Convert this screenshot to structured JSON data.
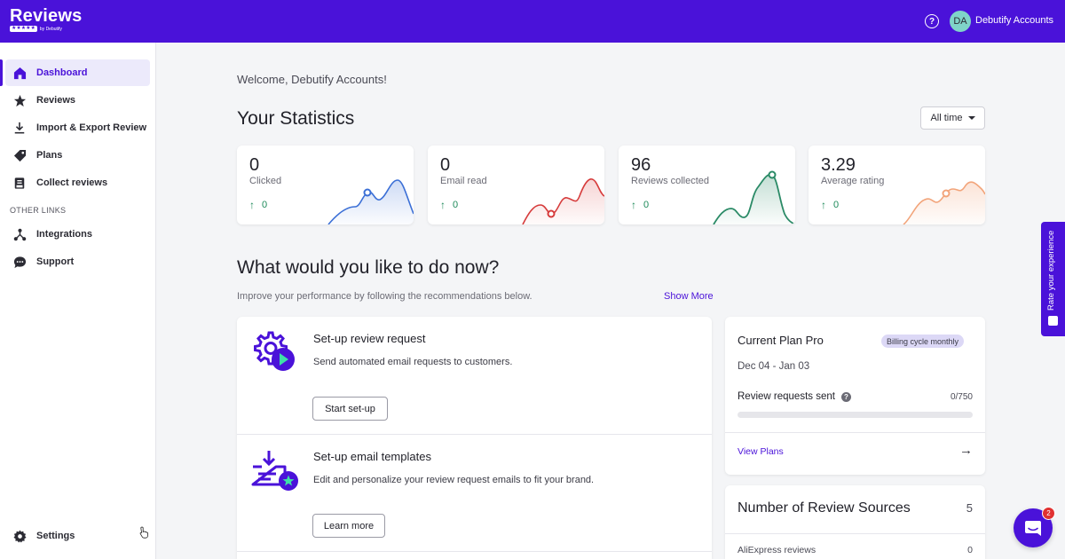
{
  "header": {
    "logo_text": "Reviews",
    "logo_sub": "by Debutify",
    "logo_stars": "★★★★★",
    "account_initials": "DA",
    "account_name": "Debutify Accounts",
    "help_icon": "help-circle-icon"
  },
  "sidebar": {
    "items": [
      {
        "label": "Dashboard",
        "icon": "home-icon",
        "active": true
      },
      {
        "label": "Reviews",
        "icon": "star-icon"
      },
      {
        "label": "Import & Export Review",
        "icon": "download-icon"
      },
      {
        "label": "Plans",
        "icon": "tag-icon"
      },
      {
        "label": "Collect reviews",
        "icon": "collect-icon"
      }
    ],
    "other_links_label": "OTHER LINKS",
    "other_items": [
      {
        "label": "Integrations",
        "icon": "integrations-icon"
      },
      {
        "label": "Support",
        "icon": "chat-bubble-icon"
      }
    ],
    "settings_label": "Settings"
  },
  "main": {
    "welcome": "Welcome, Debutify Accounts!",
    "stats_title": "Your Statistics",
    "period_select": "All time",
    "stats": [
      {
        "value": "0",
        "label": "Clicked",
        "delta": "0",
        "color": "#3b6fd6"
      },
      {
        "value": "0",
        "label": "Email read",
        "delta": "0",
        "color": "#d63b3b"
      },
      {
        "value": "96",
        "label": "Reviews collected",
        "delta": "0",
        "color": "#2a8a66"
      },
      {
        "value": "3.29",
        "label": "Average rating",
        "delta": "0",
        "color": "#f2a47a"
      }
    ],
    "todo_title": "What would you like to do now?",
    "todo_subtitle": "Improve your performance by following the recommendations below.",
    "show_more": "Show More",
    "tasks": [
      {
        "title": "Set-up review request",
        "desc": "Send automated email requests to customers.",
        "button": "Start set-up",
        "icon": "gear-play-icon"
      },
      {
        "title": "Set-up email templates",
        "desc": "Edit and personalize your review request emails to fit your brand.",
        "button": "Learn more",
        "icon": "email-template-icon"
      }
    ]
  },
  "plan": {
    "title": "Current Plan Pro",
    "badge": "Billing cycle monthly",
    "dates": "Dec 04 - Jan 03",
    "requests_label": "Review requests sent",
    "requests_count": "0/750",
    "requests_progress": 0,
    "view_plans": "View Plans"
  },
  "sources": {
    "title": "Number of Review Sources",
    "count": "5",
    "items": [
      {
        "name": "AliExpress reviews",
        "value": "0"
      }
    ]
  },
  "feedback_tab": "Rate your experience",
  "chat": {
    "badge": "2"
  },
  "colors": {
    "brand": "#4a12d9",
    "positive": "#1e8a5a"
  }
}
